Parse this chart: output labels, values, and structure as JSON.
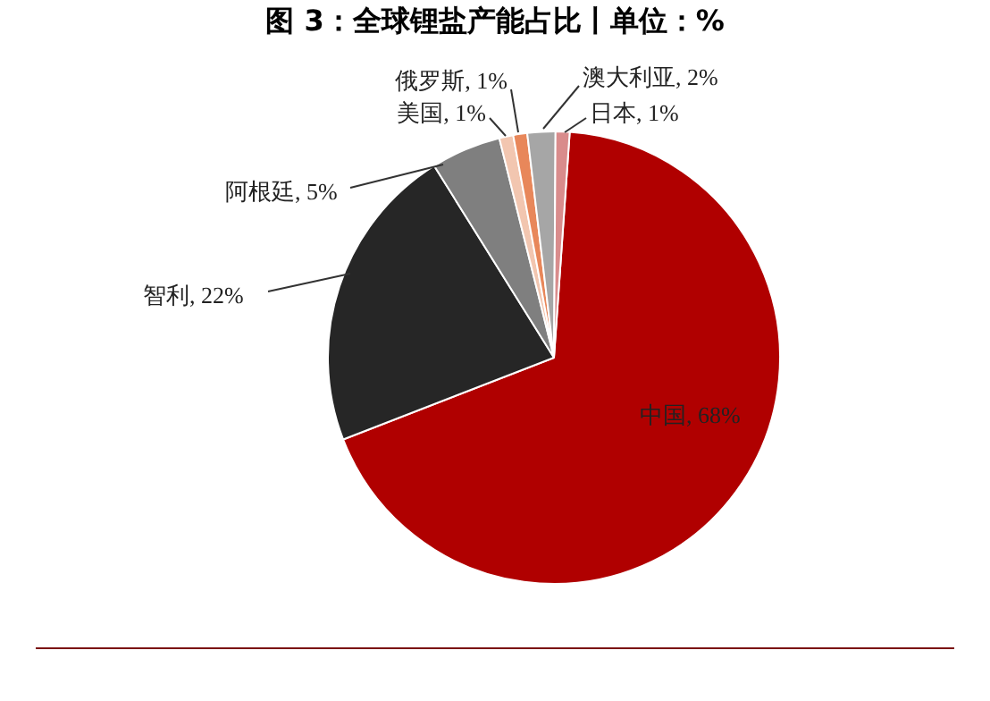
{
  "chart_data": {
    "type": "pie",
    "title": "图 3：全球锂盐产能占比丨单位：%",
    "categories": [
      "中国",
      "智利",
      "阿根廷",
      "美国",
      "俄罗斯",
      "澳大利亚",
      "日本"
    ],
    "values": [
      68,
      22,
      5,
      1,
      1,
      2,
      1
    ],
    "value_labels": [
      "68%",
      "22%",
      "5%",
      "1%",
      "1%",
      "2%",
      "1%"
    ],
    "colors": [
      "#b00000",
      "#262626",
      "#7f7f7f",
      "#f2c6b0",
      "#e8875a",
      "#a6a6a6",
      "#d98c8c"
    ]
  }
}
